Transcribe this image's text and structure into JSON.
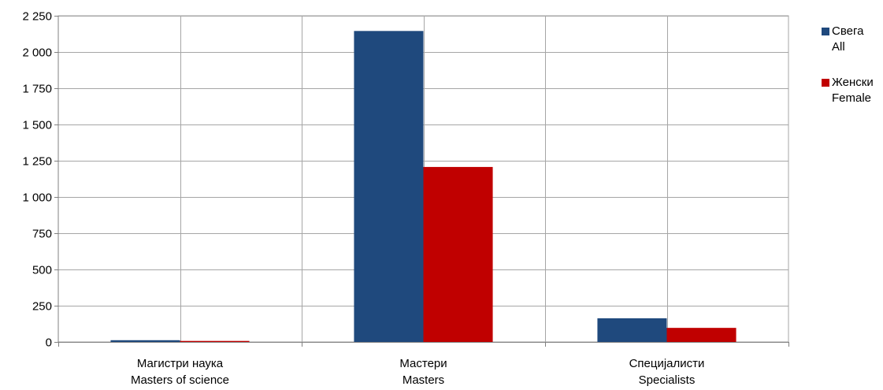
{
  "chart_data": {
    "type": "bar",
    "categories": [
      [
        "Магистри наука",
        "Masters of science"
      ],
      [
        "Мастери",
        "Masters"
      ],
      [
        "Специјалисти",
        "Specialists"
      ]
    ],
    "series": [
      {
        "name": [
          "Свега",
          "All"
        ],
        "color": "#1f497d",
        "values": [
          12,
          2145,
          163
        ]
      },
      {
        "name": [
          "Женски",
          "Female"
        ],
        "color": "#c00000",
        "values": [
          7,
          1207,
          97
        ]
      }
    ],
    "ylim": [
      0,
      2250
    ],
    "yticks": [
      0,
      250,
      500,
      750,
      1000,
      1250,
      1500,
      1750,
      2000,
      2250
    ],
    "ytick_labels": [
      "0",
      "250",
      "500",
      "750",
      "1 000",
      "1 250",
      "1 500",
      "1 750",
      "2 000",
      "2 250"
    ],
    "grid": true,
    "legend_position": "right"
  }
}
